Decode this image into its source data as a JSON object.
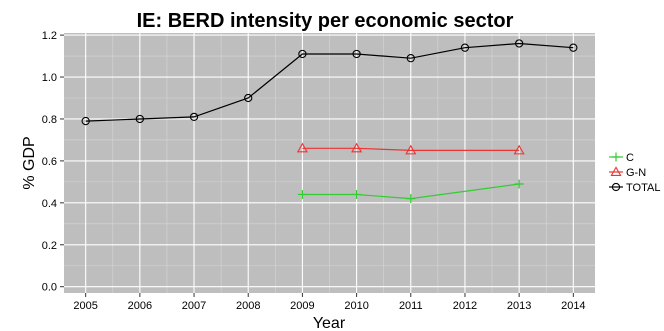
{
  "chart_data": {
    "type": "line",
    "title": "IE: BERD intensity per economic sector",
    "xlabel": "Year",
    "ylabel": "% GDP",
    "x": [
      2005,
      2006,
      2007,
      2008,
      2009,
      2010,
      2011,
      2012,
      2013,
      2014
    ],
    "x_ticks": [
      "2005",
      "2006",
      "2007",
      "2008",
      "2009",
      "2010",
      "2011",
      "2012",
      "2013",
      "2014"
    ],
    "ylim": [
      -0.03,
      1.21
    ],
    "y_ticks": [
      "0.0",
      "0.2",
      "0.4",
      "0.6",
      "0.8",
      "1.0",
      "1.2"
    ],
    "grid": true,
    "legend_position": "right",
    "background": "#bebebe",
    "series": [
      {
        "name": "C",
        "color": "#33cc33",
        "marker": "plus",
        "points": [
          [
            2009,
            0.44
          ],
          [
            2010,
            0.44
          ],
          [
            2011,
            0.42
          ],
          [
            2013,
            0.49
          ]
        ]
      },
      {
        "name": "G-N",
        "color": "#ee3333",
        "marker": "triangle",
        "points": [
          [
            2009,
            0.66
          ],
          [
            2010,
            0.66
          ],
          [
            2011,
            0.65
          ],
          [
            2013,
            0.65
          ]
        ]
      },
      {
        "name": "TOTAL",
        "color": "#000000",
        "marker": "circle",
        "points": [
          [
            2005,
            0.79
          ],
          [
            2006,
            0.8
          ],
          [
            2007,
            0.81
          ],
          [
            2008,
            0.9
          ],
          [
            2009,
            1.11
          ],
          [
            2010,
            1.11
          ],
          [
            2011,
            1.09
          ],
          [
            2012,
            1.14
          ],
          [
            2013,
            1.16
          ],
          [
            2014,
            1.14
          ]
        ]
      }
    ]
  }
}
